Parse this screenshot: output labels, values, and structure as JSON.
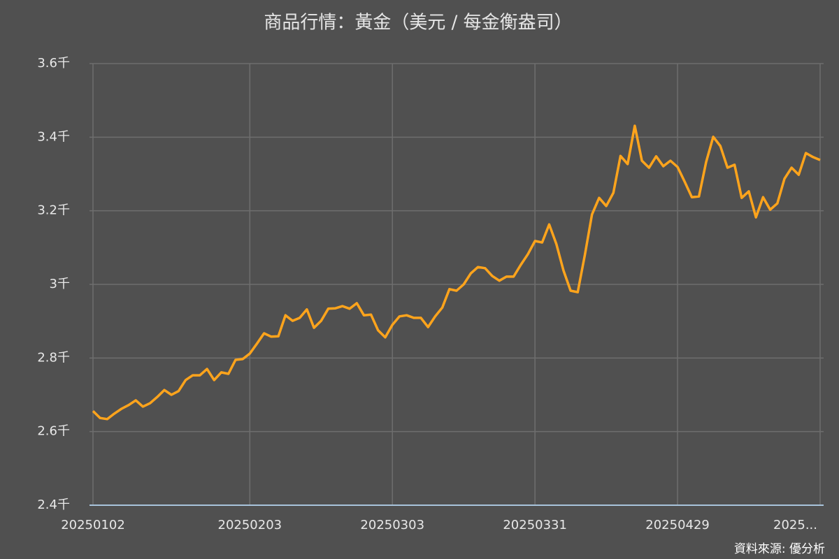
{
  "chart_data": {
    "type": "line",
    "title": "商品行情：黃金（美元 / 每金衡盎司）",
    "source": "資料來源: 優分析",
    "categories": [
      "20250102",
      null,
      null,
      null,
      null,
      null,
      null,
      null,
      null,
      null,
      null,
      null,
      null,
      null,
      null,
      null,
      null,
      null,
      null,
      null,
      null,
      null,
      "20250203",
      null,
      null,
      null,
      null,
      null,
      null,
      null,
      null,
      null,
      null,
      null,
      null,
      null,
      null,
      null,
      null,
      null,
      null,
      null,
      "20250303",
      null,
      null,
      null,
      null,
      null,
      null,
      null,
      null,
      null,
      null,
      null,
      null,
      null,
      null,
      null,
      null,
      null,
      null,
      null,
      "20250331",
      null,
      null,
      null,
      null,
      null,
      null,
      null,
      null,
      null,
      null,
      null,
      null,
      null,
      null,
      null,
      null,
      null,
      null,
      null,
      "20250429",
      null,
      null,
      null,
      null,
      null,
      null,
      null,
      null,
      null,
      null,
      null,
      null,
      null,
      null,
      null,
      null,
      null,
      null,
      null,
      "2025..."
    ],
    "series": [
      {
        "name": "黃金",
        "color": "#ffa41c",
        "values": [
          2656,
          2637,
          2634,
          2649,
          2662,
          2672,
          2685,
          2668,
          2677,
          2694,
          2713,
          2700,
          2710,
          2740,
          2753,
          2753,
          2770,
          2740,
          2761,
          2757,
          2795,
          2797,
          2812,
          2839,
          2867,
          2858,
          2859,
          2916,
          2901,
          2909,
          2932,
          2882,
          2901,
          2934,
          2935,
          2941,
          2934,
          2949,
          2916,
          2918,
          2875,
          2856,
          2890,
          2913,
          2916,
          2909,
          2909,
          2884,
          2913,
          2937,
          2987,
          2983,
          3000,
          3030,
          3047,
          3044,
          3023,
          3010,
          3021,
          3021,
          3053,
          3082,
          3118,
          3114,
          3163,
          3110,
          3038,
          2983,
          2979,
          3080,
          3190,
          3235,
          3213,
          3249,
          3349,
          3327,
          3431,
          3336,
          3317,
          3348,
          3321,
          3336,
          3319,
          3279,
          3237,
          3239,
          3332,
          3401,
          3376,
          3317,
          3325,
          3235,
          3253,
          3182,
          3237,
          3203,
          3220,
          3287,
          3317,
          3298,
          3357,
          3346,
          3338
        ]
      }
    ],
    "ylim": [
      2400,
      3600
    ],
    "yticks": [
      {
        "value": 2400,
        "label": "2.4千"
      },
      {
        "value": 2600,
        "label": "2.6千"
      },
      {
        "value": 2800,
        "label": "2.8千"
      },
      {
        "value": 3000,
        "label": "3千"
      },
      {
        "value": 3200,
        "label": "3.2千"
      },
      {
        "value": 3400,
        "label": "3.4千"
      },
      {
        "value": 3600,
        "label": "3.6千"
      }
    ],
    "grid": true
  }
}
